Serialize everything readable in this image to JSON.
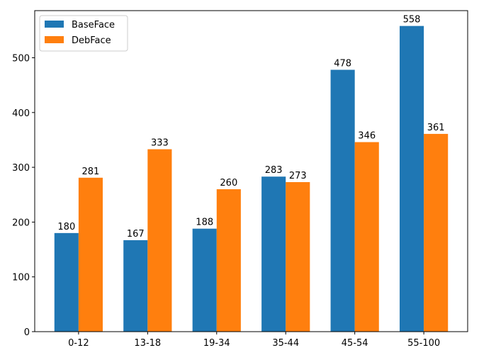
{
  "chart_data": {
    "type": "bar",
    "categories": [
      "0-12",
      "13-18",
      "19-34",
      "35-44",
      "45-54",
      "55-100"
    ],
    "series": [
      {
        "name": "BaseFace",
        "values": [
          180,
          167,
          188,
          283,
          478,
          558
        ],
        "color": "#1f77b4"
      },
      {
        "name": "DebFace",
        "values": [
          281,
          333,
          260,
          273,
          346,
          361
        ],
        "color": "#ff7f0e"
      }
    ],
    "title": "",
    "xlabel": "",
    "ylabel": "",
    "ylim": [
      0,
      586
    ],
    "yticks": [
      0,
      100,
      200,
      300,
      400,
      500
    ],
    "grid": false,
    "legend": "top-left",
    "data_labels": true
  }
}
